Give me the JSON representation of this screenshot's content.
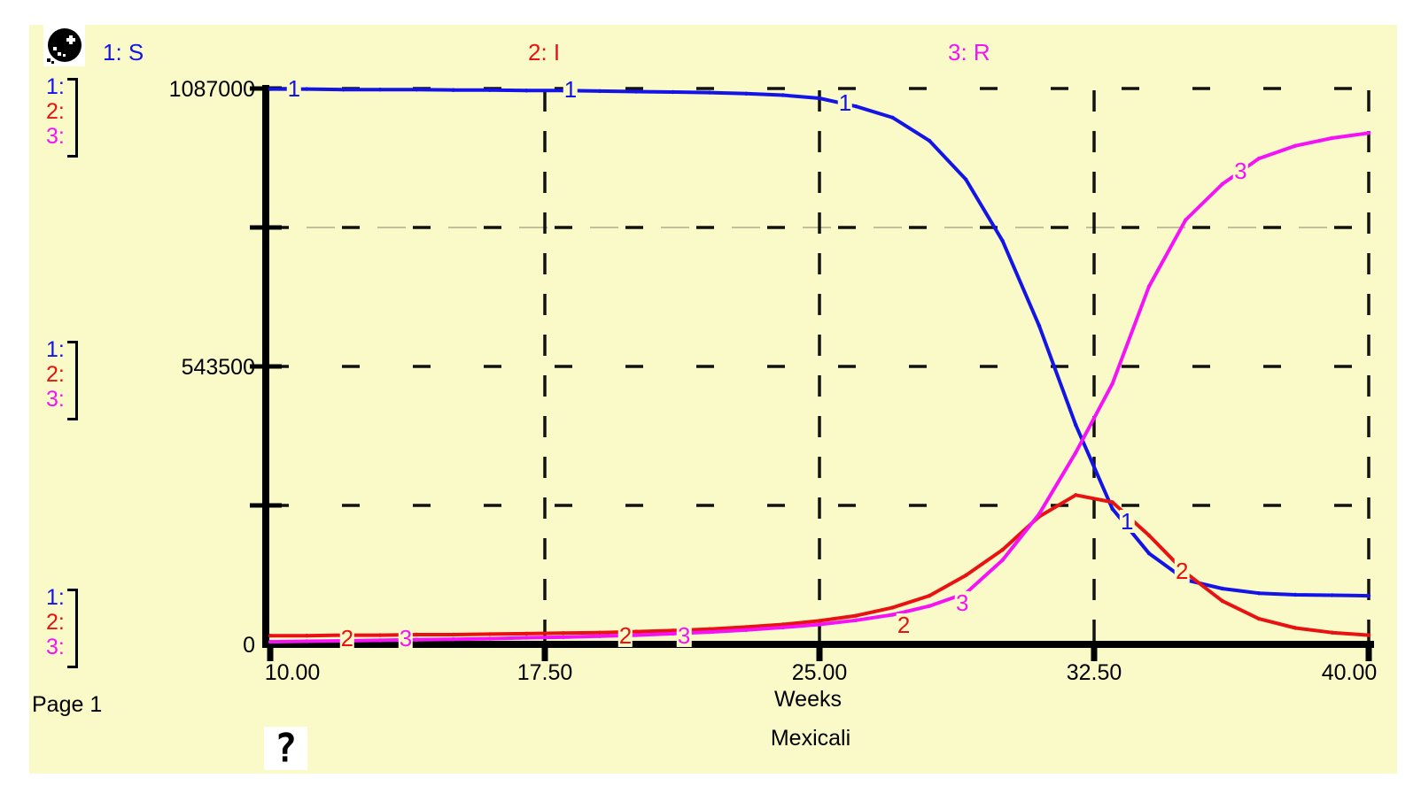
{
  "window": {
    "page_label": "Page 1"
  },
  "icons": {
    "globe": "globe-icon",
    "help": "question-mark-icon"
  },
  "legend": [
    {
      "label": "1: S",
      "color": "#1414E6"
    },
    {
      "label": "2: I",
      "color": "#E81212"
    },
    {
      "label": "3: R",
      "color": "#F513F5"
    }
  ],
  "scale_bracket_rows": [
    "1:",
    "2:",
    "3:"
  ],
  "chart_data": {
    "type": "line",
    "title": "Mexicali",
    "xlabel": "Weeks",
    "x_ticks": [
      "10.00",
      "17.50",
      "25.00",
      "32.50",
      "40.00"
    ],
    "y_tick_labels": [
      "0",
      "543500",
      "1087000"
    ],
    "xlim": [
      10,
      40
    ],
    "ylim": [
      0,
      1087000
    ],
    "x_unit": "weeks",
    "points_every_weeks": 1,
    "grid": "dashed",
    "legend_position": "top",
    "series": [
      {
        "id": "1",
        "name": "S",
        "color": "#1414E6",
        "values": [
          1086000,
          1086000,
          1085000,
          1085000,
          1085000,
          1084000,
          1084000,
          1083000,
          1083000,
          1082000,
          1081000,
          1080000,
          1079000,
          1077000,
          1074000,
          1068000,
          1052000,
          1030000,
          985000,
          909000,
          789000,
          623000,
          429000,
          265000,
          178000,
          126000,
          109000,
          100000,
          97000,
          96000,
          95000
        ]
      },
      {
        "id": "2",
        "name": "I",
        "color": "#E81212",
        "values": [
          17000,
          17000,
          18000,
          18000,
          19000,
          19000,
          20000,
          21000,
          22000,
          23000,
          25000,
          27000,
          30000,
          34000,
          39000,
          46000,
          56000,
          72000,
          95000,
          135000,
          185000,
          250000,
          292000,
          278000,
          213000,
          140000,
          85000,
          50000,
          32000,
          23000,
          18000
        ]
      },
      {
        "id": "3",
        "name": "R",
        "color": "#F513F5",
        "values": [
          5000,
          6000,
          7000,
          8000,
          9000,
          10000,
          11000,
          13000,
          14000,
          16000,
          18000,
          21000,
          24000,
          28000,
          33000,
          39000,
          47000,
          58000,
          75000,
          100000,
          165000,
          255000,
          375000,
          510000,
          700000,
          830000,
          900000,
          950000,
          975000,
          990000,
          1000000
        ]
      }
    ],
    "curve_labels": [
      {
        "series": "1",
        "week": 10.65,
        "value": 1086000
      },
      {
        "series": "1",
        "week": 18.2,
        "value": 1083000
      },
      {
        "series": "1",
        "week": 25.7,
        "value": 1057000
      },
      {
        "series": "1",
        "week": 33.4,
        "value": 238000
      },
      {
        "series": "2",
        "week": 12.1,
        "value": 11000
      },
      {
        "series": "2",
        "week": 19.7,
        "value": 15000
      },
      {
        "series": "2",
        "week": 27.3,
        "value": 36000
      },
      {
        "series": "2",
        "week": 34.9,
        "value": 142000
      },
      {
        "series": "3",
        "week": 13.7,
        "value": 11000
      },
      {
        "series": "3",
        "week": 21.3,
        "value": 15000
      },
      {
        "series": "3",
        "week": 28.9,
        "value": 80000
      },
      {
        "series": "3",
        "week": 36.5,
        "value": 925000
      }
    ]
  }
}
